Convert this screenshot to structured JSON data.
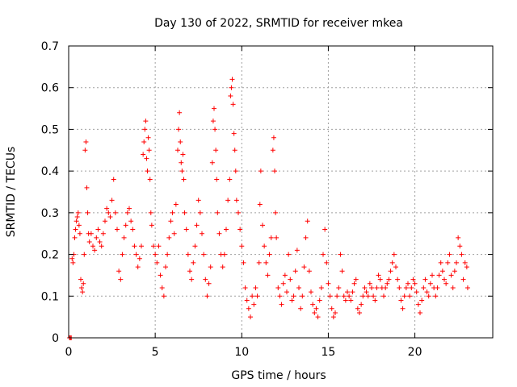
{
  "chart_data": {
    "type": "scatter",
    "title": "Day 130 of 2022, SRMTID for receiver mkea",
    "xlabel": "GPS time / hours",
    "ylabel": "SRMTID / TECUs",
    "xlim": [
      0,
      24.5
    ],
    "ylim": [
      0,
      0.7
    ],
    "xticks": [
      0,
      5,
      10,
      15,
      20
    ],
    "yticks": [
      0,
      0.1,
      0.2,
      0.3,
      0.4,
      0.5,
      0.6,
      0.7
    ],
    "grid": true,
    "marker": "+",
    "color": "#ff0000",
    "series": [
      {
        "name": "SRMTID",
        "points": [
          [
            0.05,
            0.0
          ],
          [
            0.1,
            0.0
          ],
          [
            0.15,
            0.0
          ],
          [
            0.2,
            0.19
          ],
          [
            0.25,
            0.18
          ],
          [
            0.3,
            0.2
          ],
          [
            0.35,
            0.24
          ],
          [
            0.4,
            0.26
          ],
          [
            0.45,
            0.28
          ],
          [
            0.5,
            0.29
          ],
          [
            0.55,
            0.3
          ],
          [
            0.6,
            0.27
          ],
          [
            0.65,
            0.25
          ],
          [
            0.7,
            0.14
          ],
          [
            0.75,
            0.12
          ],
          [
            0.8,
            0.11
          ],
          [
            0.85,
            0.13
          ],
          [
            0.9,
            0.2
          ],
          [
            0.95,
            0.45
          ],
          [
            1.0,
            0.47
          ],
          [
            1.05,
            0.36
          ],
          [
            1.1,
            0.3
          ],
          [
            1.15,
            0.25
          ],
          [
            1.2,
            0.23
          ],
          [
            1.3,
            0.25
          ],
          [
            1.4,
            0.22
          ],
          [
            1.5,
            0.21
          ],
          [
            1.6,
            0.24
          ],
          [
            1.7,
            0.26
          ],
          [
            1.8,
            0.23
          ],
          [
            1.9,
            0.22
          ],
          [
            2.0,
            0.25
          ],
          [
            2.1,
            0.28
          ],
          [
            2.2,
            0.31
          ],
          [
            2.3,
            0.3
          ],
          [
            2.4,
            0.29
          ],
          [
            2.5,
            0.33
          ],
          [
            2.6,
            0.38
          ],
          [
            2.7,
            0.3
          ],
          [
            2.8,
            0.26
          ],
          [
            2.9,
            0.16
          ],
          [
            3.0,
            0.14
          ],
          [
            3.1,
            0.2
          ],
          [
            3.2,
            0.24
          ],
          [
            3.3,
            0.27
          ],
          [
            3.4,
            0.3
          ],
          [
            3.5,
            0.31
          ],
          [
            3.6,
            0.28
          ],
          [
            3.7,
            0.26
          ],
          [
            3.8,
            0.22
          ],
          [
            3.9,
            0.2
          ],
          [
            4.0,
            0.17
          ],
          [
            4.1,
            0.19
          ],
          [
            4.2,
            0.22
          ],
          [
            4.3,
            0.44
          ],
          [
            4.35,
            0.47
          ],
          [
            4.4,
            0.5
          ],
          [
            4.45,
            0.52
          ],
          [
            4.5,
            0.43
          ],
          [
            4.55,
            0.4
          ],
          [
            4.6,
            0.48
          ],
          [
            4.65,
            0.45
          ],
          [
            4.7,
            0.38
          ],
          [
            4.75,
            0.3
          ],
          [
            4.8,
            0.27
          ],
          [
            4.9,
            0.22
          ],
          [
            5.0,
            0.2
          ],
          [
            5.1,
            0.18
          ],
          [
            5.2,
            0.22
          ],
          [
            5.3,
            0.15
          ],
          [
            5.4,
            0.12
          ],
          [
            5.5,
            0.1
          ],
          [
            5.6,
            0.17
          ],
          [
            5.7,
            0.2
          ],
          [
            5.8,
            0.24
          ],
          [
            5.9,
            0.28
          ],
          [
            6.0,
            0.3
          ],
          [
            6.1,
            0.25
          ],
          [
            6.2,
            0.32
          ],
          [
            6.3,
            0.45
          ],
          [
            6.35,
            0.5
          ],
          [
            6.4,
            0.54
          ],
          [
            6.45,
            0.47
          ],
          [
            6.5,
            0.42
          ],
          [
            6.55,
            0.4
          ],
          [
            6.6,
            0.44
          ],
          [
            6.65,
            0.38
          ],
          [
            6.7,
            0.3
          ],
          [
            6.8,
            0.26
          ],
          [
            6.9,
            0.2
          ],
          [
            7.0,
            0.16
          ],
          [
            7.1,
            0.14
          ],
          [
            7.2,
            0.18
          ],
          [
            7.3,
            0.22
          ],
          [
            7.4,
            0.27
          ],
          [
            7.5,
            0.33
          ],
          [
            7.6,
            0.3
          ],
          [
            7.7,
            0.25
          ],
          [
            7.8,
            0.2
          ],
          [
            7.9,
            0.14
          ],
          [
            8.0,
            0.1
          ],
          [
            8.1,
            0.13
          ],
          [
            8.2,
            0.17
          ],
          [
            8.3,
            0.42
          ],
          [
            8.35,
            0.52
          ],
          [
            8.4,
            0.55
          ],
          [
            8.45,
            0.5
          ],
          [
            8.5,
            0.45
          ],
          [
            8.55,
            0.38
          ],
          [
            8.6,
            0.3
          ],
          [
            8.7,
            0.25
          ],
          [
            8.8,
            0.2
          ],
          [
            8.9,
            0.17
          ],
          [
            9.0,
            0.2
          ],
          [
            9.1,
            0.26
          ],
          [
            9.2,
            0.33
          ],
          [
            9.3,
            0.38
          ],
          [
            9.35,
            0.58
          ],
          [
            9.4,
            0.6
          ],
          [
            9.45,
            0.62
          ],
          [
            9.5,
            0.56
          ],
          [
            9.55,
            0.49
          ],
          [
            9.6,
            0.45
          ],
          [
            9.65,
            0.4
          ],
          [
            9.7,
            0.33
          ],
          [
            9.8,
            0.3
          ],
          [
            9.9,
            0.26
          ],
          [
            10.0,
            0.22
          ],
          [
            10.1,
            0.18
          ],
          [
            10.2,
            0.12
          ],
          [
            10.3,
            0.09
          ],
          [
            10.4,
            0.07
          ],
          [
            10.5,
            0.05
          ],
          [
            10.6,
            0.1
          ],
          [
            10.7,
            0.08
          ],
          [
            10.8,
            0.12
          ],
          [
            10.9,
            0.1
          ],
          [
            11.0,
            0.18
          ],
          [
            11.05,
            0.32
          ],
          [
            11.1,
            0.4
          ],
          [
            11.2,
            0.27
          ],
          [
            11.3,
            0.22
          ],
          [
            11.4,
            0.18
          ],
          [
            11.5,
            0.15
          ],
          [
            11.6,
            0.2
          ],
          [
            11.7,
            0.24
          ],
          [
            11.8,
            0.45
          ],
          [
            11.85,
            0.48
          ],
          [
            11.9,
            0.4
          ],
          [
            11.95,
            0.3
          ],
          [
            12.0,
            0.24
          ],
          [
            12.1,
            0.12
          ],
          [
            12.2,
            0.1
          ],
          [
            12.3,
            0.08
          ],
          [
            12.4,
            0.13
          ],
          [
            12.5,
            0.15
          ],
          [
            12.6,
            0.11
          ],
          [
            12.7,
            0.2
          ],
          [
            12.8,
            0.14
          ],
          [
            12.9,
            0.09
          ],
          [
            13.0,
            0.1
          ],
          [
            13.1,
            0.16
          ],
          [
            13.2,
            0.21
          ],
          [
            13.3,
            0.12
          ],
          [
            13.4,
            0.07
          ],
          [
            13.5,
            0.1
          ],
          [
            13.6,
            0.17
          ],
          [
            13.7,
            0.24
          ],
          [
            13.8,
            0.28
          ],
          [
            13.9,
            0.16
          ],
          [
            14.0,
            0.11
          ],
          [
            14.1,
            0.08
          ],
          [
            14.2,
            0.06
          ],
          [
            14.3,
            0.07
          ],
          [
            14.4,
            0.05
          ],
          [
            14.5,
            0.09
          ],
          [
            14.6,
            0.12
          ],
          [
            14.7,
            0.2
          ],
          [
            14.8,
            0.26
          ],
          [
            14.9,
            0.18
          ],
          [
            15.0,
            0.13
          ],
          [
            15.1,
            0.1
          ],
          [
            15.2,
            0.07
          ],
          [
            15.3,
            0.05
          ],
          [
            15.4,
            0.06
          ],
          [
            15.5,
            0.1
          ],
          [
            15.6,
            0.12
          ],
          [
            15.7,
            0.2
          ],
          [
            15.8,
            0.16
          ],
          [
            15.9,
            0.1
          ],
          [
            16.0,
            0.09
          ],
          [
            16.1,
            0.11
          ],
          [
            16.2,
            0.1
          ],
          [
            16.3,
            0.09
          ],
          [
            16.4,
            0.11
          ],
          [
            16.5,
            0.13
          ],
          [
            16.6,
            0.14
          ],
          [
            16.7,
            0.07
          ],
          [
            16.8,
            0.06
          ],
          [
            16.9,
            0.08
          ],
          [
            17.0,
            0.1
          ],
          [
            17.1,
            0.12
          ],
          [
            17.2,
            0.11
          ],
          [
            17.3,
            0.1
          ],
          [
            17.4,
            0.13
          ],
          [
            17.5,
            0.12
          ],
          [
            17.6,
            0.1
          ],
          [
            17.7,
            0.09
          ],
          [
            17.8,
            0.12
          ],
          [
            17.9,
            0.15
          ],
          [
            18.0,
            0.14
          ],
          [
            18.1,
            0.12
          ],
          [
            18.2,
            0.1
          ],
          [
            18.3,
            0.12
          ],
          [
            18.4,
            0.13
          ],
          [
            18.5,
            0.14
          ],
          [
            18.6,
            0.16
          ],
          [
            18.7,
            0.18
          ],
          [
            18.8,
            0.2
          ],
          [
            18.9,
            0.17
          ],
          [
            19.0,
            0.14
          ],
          [
            19.1,
            0.12
          ],
          [
            19.2,
            0.09
          ],
          [
            19.3,
            0.07
          ],
          [
            19.4,
            0.1
          ],
          [
            19.5,
            0.12
          ],
          [
            19.6,
            0.13
          ],
          [
            19.7,
            0.1
          ],
          [
            19.8,
            0.12
          ],
          [
            19.9,
            0.14
          ],
          [
            20.0,
            0.13
          ],
          [
            20.1,
            0.11
          ],
          [
            20.2,
            0.08
          ],
          [
            20.3,
            0.06
          ],
          [
            20.4,
            0.09
          ],
          [
            20.5,
            0.12
          ],
          [
            20.6,
            0.14
          ],
          [
            20.7,
            0.11
          ],
          [
            20.8,
            0.1
          ],
          [
            20.9,
            0.13
          ],
          [
            21.0,
            0.15
          ],
          [
            21.1,
            0.12
          ],
          [
            21.2,
            0.1
          ],
          [
            21.3,
            0.12
          ],
          [
            21.4,
            0.15
          ],
          [
            21.5,
            0.18
          ],
          [
            21.6,
            0.16
          ],
          [
            21.7,
            0.14
          ],
          [
            21.8,
            0.13
          ],
          [
            21.9,
            0.18
          ],
          [
            22.0,
            0.2
          ],
          [
            22.1,
            0.15
          ],
          [
            22.2,
            0.12
          ],
          [
            22.3,
            0.16
          ],
          [
            22.4,
            0.18
          ],
          [
            22.5,
            0.24
          ],
          [
            22.6,
            0.22
          ],
          [
            22.7,
            0.2
          ],
          [
            22.8,
            0.14
          ],
          [
            22.9,
            0.18
          ],
          [
            23.0,
            0.17
          ],
          [
            23.05,
            0.12
          ]
        ]
      }
    ]
  }
}
